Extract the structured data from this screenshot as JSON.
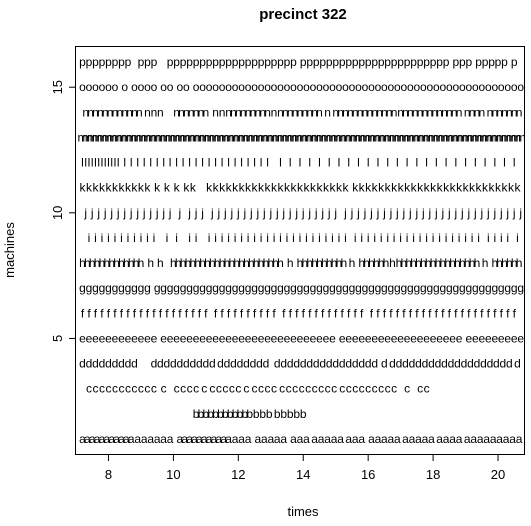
{
  "chart_data": {
    "type": "scatter",
    "title": "precinct 322",
    "xlabel": "times",
    "ylabel": "machines",
    "xlim": [
      7.0,
      20.8
    ],
    "ylim": [
      0.4,
      16.6
    ],
    "xticks": [
      8,
      10,
      12,
      14,
      16,
      18,
      20
    ],
    "yticks": [
      5,
      10,
      15
    ],
    "grid": false,
    "marker": "letter of machine",
    "series": [
      {
        "label": "a",
        "y": 1,
        "x": [
          7.2,
          7.35,
          7.5,
          7.65,
          7.8,
          7.95,
          8.1,
          8.25,
          8.4,
          8.55,
          8.7,
          8.9,
          9.1,
          9.3,
          9.5,
          9.7,
          9.9,
          10.2,
          10.35,
          10.5,
          10.65,
          10.8,
          10.95,
          11.1,
          11.25,
          11.4,
          11.55,
          11.7,
          11.9,
          12.1,
          12.3,
          12.6,
          12.8,
          13.0,
          13.2,
          13.4,
          13.7,
          13.9,
          14.1,
          14.35,
          14.55,
          14.75,
          14.95,
          15.15,
          15.4,
          15.6,
          15.8,
          16.1,
          16.3,
          16.5,
          16.7,
          16.9,
          17.15,
          17.35,
          17.55,
          17.75,
          17.95,
          18.2,
          18.4,
          18.6,
          18.8,
          19.05,
          19.25,
          19.45,
          19.65,
          19.85,
          20.05,
          20.25,
          20.45,
          20.65
        ]
      },
      {
        "label": "b",
        "y": 2,
        "x": [
          10.7,
          10.85,
          11.0,
          11.15,
          11.3,
          11.45,
          11.6,
          11.75,
          11.9,
          12.05,
          12.2,
          12.35,
          12.55,
          12.75,
          12.95,
          13.2,
          13.4,
          13.6,
          13.8,
          14.0
        ]
      },
      {
        "label": "c",
        "y": 3,
        "x": [
          7.4,
          7.6,
          7.8,
          8.0,
          8.2,
          8.4,
          8.6,
          8.8,
          9.0,
          9.2,
          9.4,
          9.7,
          10.1,
          10.3,
          10.5,
          10.7,
          10.95,
          11.2,
          11.4,
          11.6,
          11.8,
          12.0,
          12.25,
          12.5,
          12.7,
          12.9,
          13.1,
          13.35,
          13.55,
          13.75,
          13.95,
          14.15,
          14.35,
          14.55,
          14.75,
          14.95,
          15.2,
          15.4,
          15.6,
          15.8,
          16.0,
          16.2,
          16.4,
          16.6,
          16.8,
          17.2,
          17.6,
          17.8
        ]
      },
      {
        "label": "d",
        "y": 4,
        "x": [
          7.2,
          7.4,
          7.6,
          7.8,
          8.0,
          8.2,
          8.4,
          8.6,
          8.8,
          9.4,
          9.6,
          9.8,
          10.0,
          10.2,
          10.4,
          10.6,
          10.8,
          11.0,
          11.2,
          11.45,
          11.65,
          11.85,
          12.05,
          12.25,
          12.45,
          12.65,
          12.85,
          13.2,
          13.4,
          13.6,
          13.8,
          14.0,
          14.2,
          14.4,
          14.6,
          14.8,
          15.0,
          15.2,
          15.4,
          15.6,
          15.8,
          16.0,
          16.2,
          16.5,
          16.75,
          16.95,
          17.15,
          17.35,
          17.55,
          17.75,
          17.95,
          18.15,
          18.35,
          18.55,
          18.75,
          18.95,
          19.15,
          19.35,
          19.55,
          19.75,
          19.95,
          20.15,
          20.35,
          20.6
        ]
      },
      {
        "label": "e",
        "y": 5,
        "x": [
          7.2,
          7.4,
          7.6,
          7.8,
          8.0,
          8.2,
          8.4,
          8.6,
          8.8,
          9.0,
          9.2,
          9.4,
          9.7,
          9.9,
          10.1,
          10.3,
          10.5,
          10.7,
          10.9,
          11.1,
          11.3,
          11.5,
          11.7,
          11.9,
          12.1,
          12.3,
          12.5,
          12.7,
          12.9,
          13.1,
          13.3,
          13.5,
          13.7,
          13.9,
          14.1,
          14.3,
          14.5,
          14.7,
          14.9,
          15.2,
          15.4,
          15.6,
          15.8,
          16.0,
          16.2,
          16.4,
          16.6,
          16.8,
          17.0,
          17.2,
          17.4,
          17.6,
          17.8,
          18.0,
          18.2,
          18.4,
          18.6,
          18.8,
          19.1,
          19.3,
          19.5,
          19.7,
          19.9,
          20.1,
          20.3,
          20.5,
          20.7
        ]
      },
      {
        "label": "f",
        "y": 6,
        "x": [
          7.2,
          7.4,
          7.6,
          7.8,
          8.0,
          8.2,
          8.4,
          8.6,
          8.8,
          9.0,
          9.2,
          9.4,
          9.6,
          9.8,
          10.0,
          10.2,
          10.4,
          10.6,
          10.8,
          11.0,
          11.3,
          11.5,
          11.7,
          11.9,
          12.1,
          12.3,
          12.5,
          12.7,
          12.9,
          13.1,
          13.4,
          13.6,
          13.8,
          14.0,
          14.2,
          14.4,
          14.6,
          14.8,
          15.0,
          15.2,
          15.4,
          15.6,
          15.8,
          16.1,
          16.3,
          16.5,
          16.7,
          16.9,
          17.1,
          17.3,
          17.5,
          17.7,
          17.9,
          18.1,
          18.3,
          18.5,
          18.7,
          18.9,
          19.1,
          19.3,
          19.5,
          19.7,
          19.9,
          20.1,
          20.3,
          20.5
        ]
      },
      {
        "label": "g",
        "y": 7,
        "x": [
          7.2,
          7.4,
          7.6,
          7.8,
          8.0,
          8.2,
          8.4,
          8.6,
          8.8,
          9.0,
          9.2,
          9.5,
          9.7,
          9.9,
          10.1,
          10.3,
          10.5,
          10.7,
          10.9,
          11.1,
          11.3,
          11.5,
          11.7,
          11.9,
          12.1,
          12.3,
          12.5,
          12.7,
          12.9,
          13.1,
          13.3,
          13.5,
          13.7,
          13.9,
          14.1,
          14.3,
          14.5,
          14.7,
          14.9,
          15.1,
          15.3,
          15.5,
          15.7,
          15.9,
          16.1,
          16.3,
          16.5,
          16.7,
          16.9,
          17.1,
          17.3,
          17.5,
          17.7,
          17.9,
          18.1,
          18.3,
          18.5,
          18.7,
          18.9,
          19.1,
          19.3,
          19.5,
          19.7,
          19.9,
          20.1,
          20.3,
          20.5,
          20.7
        ]
      },
      {
        "label": "h",
        "y": 8,
        "x": [
          7.2,
          7.35,
          7.5,
          7.65,
          7.8,
          7.95,
          8.1,
          8.25,
          8.4,
          8.55,
          8.7,
          8.85,
          9.0,
          9.3,
          9.6,
          10.0,
          10.15,
          10.3,
          10.45,
          10.6,
          10.75,
          10.9,
          11.05,
          11.2,
          11.35,
          11.5,
          11.65,
          11.8,
          11.95,
          12.1,
          12.25,
          12.4,
          12.55,
          12.7,
          12.85,
          13.0,
          13.15,
          13.3,
          13.6,
          13.9,
          14.05,
          14.2,
          14.35,
          14.5,
          14.65,
          14.8,
          14.95,
          15.1,
          15.25,
          15.5,
          15.8,
          15.95,
          16.1,
          16.25,
          16.4,
          16.55,
          16.75,
          16.95,
          17.1,
          17.25,
          17.4,
          17.55,
          17.7,
          17.85,
          18.0,
          18.15,
          18.3,
          18.45,
          18.6,
          18.75,
          18.9,
          19.05,
          19.2,
          19.35,
          19.6,
          19.9,
          20.05,
          20.2,
          20.35,
          20.5,
          20.65
        ]
      },
      {
        "label": "i",
        "y": 9,
        "x": [
          7.4,
          7.6,
          7.8,
          8.0,
          8.2,
          8.4,
          8.6,
          8.8,
          9.0,
          9.2,
          9.4,
          9.8,
          10.1,
          10.5,
          10.7,
          11.1,
          11.3,
          11.5,
          11.7,
          11.9,
          12.1,
          12.3,
          12.5,
          12.7,
          12.9,
          13.1,
          13.3,
          13.5,
          13.7,
          13.9,
          14.1,
          14.3,
          14.5,
          14.7,
          14.9,
          15.1,
          15.3,
          15.6,
          15.8,
          16.0,
          16.2,
          16.4,
          16.6,
          16.8,
          17.0,
          17.2,
          17.4,
          17.6,
          17.8,
          18.0,
          18.2,
          18.4,
          18.6,
          18.8,
          19.0,
          19.2,
          19.4,
          19.7,
          19.9,
          20.1,
          20.3,
          20.6
        ]
      },
      {
        "label": "j",
        "y": 10,
        "x": [
          7.3,
          7.5,
          7.7,
          7.9,
          8.1,
          8.3,
          8.5,
          8.7,
          8.9,
          9.1,
          9.3,
          9.5,
          9.7,
          9.9,
          10.2,
          10.5,
          10.7,
          10.9,
          11.2,
          11.4,
          11.6,
          11.8,
          12.0,
          12.2,
          12.4,
          12.6,
          12.8,
          13.0,
          13.2,
          13.4,
          13.6,
          13.8,
          14.0,
          14.2,
          14.4,
          14.6,
          14.8,
          15.0,
          15.3,
          15.5,
          15.7,
          15.9,
          16.1,
          16.3,
          16.5,
          16.7,
          16.9,
          17.1,
          17.3,
          17.5,
          17.7,
          17.9,
          18.1,
          18.3,
          18.5,
          18.7,
          18.9,
          19.1,
          19.3,
          19.5,
          19.7,
          19.9,
          20.1,
          20.3,
          20.5,
          20.7
        ]
      },
      {
        "label": "k",
        "y": 11,
        "x": [
          7.2,
          7.4,
          7.6,
          7.8,
          8.0,
          8.2,
          8.4,
          8.6,
          8.8,
          9.0,
          9.2,
          9.5,
          9.8,
          10.1,
          10.4,
          10.6,
          11.1,
          11.3,
          11.5,
          11.7,
          11.9,
          12.1,
          12.3,
          12.5,
          12.7,
          12.9,
          13.1,
          13.3,
          13.5,
          13.7,
          13.9,
          14.1,
          14.3,
          14.5,
          14.7,
          14.9,
          15.1,
          15.3,
          15.6,
          15.8,
          16.0,
          16.2,
          16.4,
          16.6,
          16.8,
          17.0,
          17.2,
          17.4,
          17.6,
          17.8,
          18.0,
          18.2,
          18.4,
          18.6,
          18.8,
          19.0,
          19.2,
          19.4,
          19.6,
          19.8,
          20.0,
          20.2,
          20.4,
          20.6
        ]
      },
      {
        "label": "l",
        "y": 12,
        "x": [
          7.2,
          7.3,
          7.4,
          7.5,
          7.6,
          7.7,
          7.8,
          7.9,
          8.0,
          8.1,
          8.2,
          8.3,
          8.5,
          8.7,
          8.9,
          9.1,
          9.3,
          9.5,
          9.7,
          9.9,
          10.1,
          10.3,
          10.5,
          10.7,
          10.9,
          11.1,
          11.3,
          11.5,
          11.7,
          11.9,
          12.1,
          12.3,
          12.5,
          12.7,
          12.9,
          13.3,
          13.6,
          13.9,
          14.2,
          14.5,
          14.8,
          15.1,
          15.4,
          15.7,
          16.0,
          16.3,
          16.6,
          16.9,
          17.2,
          17.5,
          17.8,
          18.1,
          18.4,
          18.7,
          19.0,
          19.3,
          19.6,
          19.9,
          20.2,
          20.5
        ]
      },
      {
        "label": "m",
        "y": 13,
        "x": [
          7.2,
          7.35,
          7.5,
          7.65,
          7.8,
          7.95,
          8.1,
          8.25,
          8.4,
          8.55,
          8.7,
          8.85,
          9.0,
          9.15,
          9.3,
          9.45,
          9.6,
          9.75,
          9.9,
          10.05,
          10.2,
          10.35,
          10.5,
          10.65,
          10.8,
          10.95,
          11.1,
          11.25,
          11.4,
          11.55,
          11.7,
          11.85,
          12.0,
          12.15,
          12.3,
          12.45,
          12.6,
          12.75,
          12.9,
          13.05,
          13.2,
          13.35,
          13.5,
          13.65,
          13.8,
          13.95,
          14.1,
          14.25,
          14.4,
          14.55,
          14.7,
          14.85,
          15.0,
          15.15,
          15.3,
          15.45,
          15.6,
          15.75,
          15.9,
          16.05,
          16.2,
          16.35,
          16.5,
          16.65,
          16.8,
          16.95,
          17.1,
          17.25,
          17.4,
          17.55,
          17.7,
          17.85,
          18.0,
          18.15,
          18.3,
          18.45,
          18.6,
          18.75,
          18.9,
          19.05,
          19.2,
          19.35,
          19.5,
          19.65,
          19.8,
          19.95,
          20.1,
          20.25,
          20.4,
          20.55,
          20.7
        ]
      },
      {
        "label": "n",
        "y": 14,
        "x": [
          7.3,
          7.45,
          7.6,
          7.75,
          7.9,
          8.05,
          8.2,
          8.35,
          8.5,
          8.65,
          8.8,
          8.95,
          9.2,
          9.4,
          9.6,
          10.1,
          10.25,
          10.4,
          10.55,
          10.7,
          10.85,
          11.0,
          11.3,
          11.5,
          11.7,
          11.85,
          12.0,
          12.15,
          12.3,
          12.45,
          12.6,
          12.75,
          12.9,
          13.1,
          13.3,
          13.45,
          13.6,
          13.75,
          13.9,
          14.05,
          14.2,
          14.35,
          14.5,
          14.75,
          15.0,
          15.15,
          15.3,
          15.45,
          15.6,
          15.75,
          15.9,
          16.05,
          16.2,
          16.35,
          16.5,
          16.65,
          16.8,
          17.0,
          17.15,
          17.3,
          17.45,
          17.6,
          17.75,
          17.9,
          18.05,
          18.2,
          18.35,
          18.5,
          18.65,
          18.8,
          19.05,
          19.2,
          19.35,
          19.5,
          19.75,
          19.9,
          20.05,
          20.2,
          20.35,
          20.5,
          20.65
        ]
      },
      {
        "label": "o",
        "y": 15,
        "x": [
          7.2,
          7.4,
          7.6,
          7.8,
          8.0,
          8.2,
          8.5,
          8.8,
          9.0,
          9.2,
          9.4,
          9.7,
          9.9,
          10.2,
          10.4,
          10.7,
          10.9,
          11.1,
          11.3,
          11.5,
          11.7,
          11.9,
          12.1,
          12.3,
          12.5,
          12.7,
          12.9,
          13.1,
          13.3,
          13.5,
          13.7,
          13.9,
          14.1,
          14.3,
          14.5,
          14.7,
          14.9,
          15.1,
          15.3,
          15.5,
          15.7,
          15.9,
          16.1,
          16.3,
          16.5,
          16.7,
          16.9,
          17.1,
          17.3,
          17.5,
          17.7,
          17.9,
          18.1,
          18.3,
          18.5,
          18.7,
          18.9,
          19.1,
          19.3,
          19.5,
          19.7,
          19.9,
          20.1,
          20.3,
          20.5,
          20.7
        ]
      },
      {
        "label": "p",
        "y": 16,
        "x": [
          7.2,
          7.4,
          7.6,
          7.8,
          8.0,
          8.2,
          8.4,
          8.6,
          9.0,
          9.2,
          9.4,
          9.9,
          10.1,
          10.3,
          10.5,
          10.7,
          10.9,
          11.1,
          11.3,
          11.5,
          11.7,
          11.9,
          12.1,
          12.3,
          12.5,
          12.7,
          12.9,
          13.1,
          13.3,
          13.5,
          13.7,
          14.0,
          14.2,
          14.4,
          14.6,
          14.8,
          15.0,
          15.2,
          15.4,
          15.6,
          15.8,
          16.0,
          16.2,
          16.4,
          16.6,
          16.8,
          17.0,
          17.2,
          17.4,
          17.6,
          17.8,
          18.0,
          18.2,
          18.4,
          18.7,
          18.9,
          19.1,
          19.4,
          19.6,
          19.8,
          20.0,
          20.2,
          20.5
        ]
      }
    ]
  }
}
